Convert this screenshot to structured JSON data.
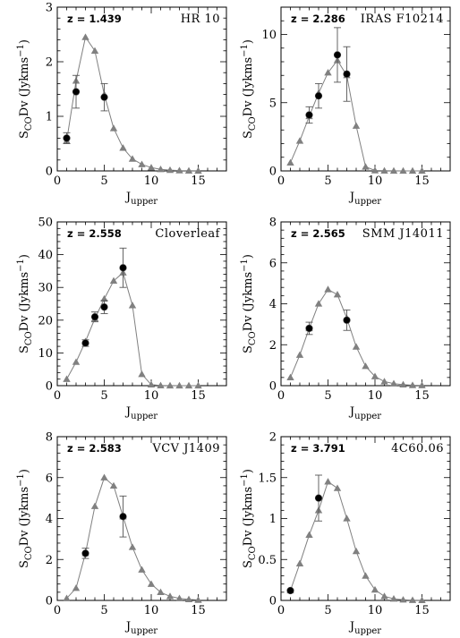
{
  "colors": {
    "model": "#808080",
    "observed": "#000000",
    "frame": "#000000"
  },
  "chart_data": [
    {
      "type": "line",
      "title": "HR 10",
      "annotation": "z = 1.439",
      "xlabel": "J",
      "xlabel_sub": "upper",
      "ylabel": "S",
      "ylabel_sub": "CO",
      "ylabel_rest": "Dv (Jykms",
      "ylabel_sup": "−1",
      "ylabel_end": ")",
      "xlim": [
        0,
        18
      ],
      "ylim": [
        0,
        3
      ],
      "xticks": [
        0,
        5,
        10,
        15
      ],
      "yticks": [
        0,
        1,
        2,
        3
      ],
      "ytick_labels": [
        "0",
        "1",
        "2",
        "3"
      ],
      "series": [
        {
          "kind": "model",
          "x": [
            1,
            2,
            3,
            4,
            5,
            6,
            7,
            8,
            9,
            10,
            11,
            12,
            13,
            14,
            15
          ],
          "y": [
            0.55,
            1.65,
            2.45,
            2.2,
            1.4,
            0.78,
            0.42,
            0.22,
            0.12,
            0.06,
            0.03,
            0.015,
            0.007,
            0.003,
            0.001
          ]
        },
        {
          "kind": "observed",
          "x": [
            1,
            2,
            5
          ],
          "y": [
            0.6,
            1.45,
            1.35
          ],
          "err": [
            0.1,
            0.3,
            0.25
          ]
        }
      ]
    },
    {
      "type": "line",
      "title": "IRAS F10214",
      "annotation": "z = 2.286",
      "xlabel": "J",
      "xlabel_sub": "upper",
      "ylabel": "S",
      "ylabel_sub": "CO",
      "ylabel_rest": "Dv (Jykms",
      "ylabel_sup": "−1",
      "ylabel_end": ")",
      "xlim": [
        0,
        18
      ],
      "ylim": [
        0,
        12
      ],
      "xticks": [
        0,
        5,
        10,
        15
      ],
      "yticks": [
        0,
        5,
        10
      ],
      "ytick_labels": [
        "0",
        "5",
        "10"
      ],
      "series": [
        {
          "kind": "model",
          "x": [
            1,
            2,
            3,
            4,
            5,
            6,
            7,
            8,
            9,
            10,
            11,
            12,
            13,
            14,
            15
          ],
          "y": [
            0.6,
            2.2,
            4.0,
            5.7,
            7.2,
            8.1,
            7.0,
            3.3,
            0.3,
            0.03,
            0.01,
            0.005,
            0.002,
            0.001,
            0.0
          ]
        },
        {
          "kind": "observed",
          "x": [
            3,
            4,
            6,
            7
          ],
          "y": [
            4.1,
            5.5,
            8.5,
            7.1
          ],
          "err": [
            0.6,
            0.9,
            2.0,
            2.0
          ]
        }
      ]
    },
    {
      "type": "line",
      "title": "Cloverleaf",
      "annotation": "z = 2.558",
      "xlabel": "J",
      "xlabel_sub": "upper",
      "ylabel": "S",
      "ylabel_sub": "CO",
      "ylabel_rest": "Dv (Jykms",
      "ylabel_sup": "−1",
      "ylabel_end": ")",
      "xlim": [
        0,
        18
      ],
      "ylim": [
        0,
        50
      ],
      "xticks": [
        0,
        5,
        10,
        15
      ],
      "yticks": [
        0,
        10,
        20,
        30,
        40,
        50
      ],
      "ytick_labels": [
        "0",
        "10",
        "20",
        "30",
        "40",
        "50"
      ],
      "series": [
        {
          "kind": "model",
          "x": [
            1,
            2,
            3,
            4,
            5,
            6,
            7,
            8,
            9,
            10,
            11,
            12,
            13,
            14,
            15
          ],
          "y": [
            2.0,
            7.2,
            13.5,
            20.5,
            26.5,
            32.0,
            34.5,
            24.5,
            3.5,
            0.3,
            0.05,
            0.02,
            0.01,
            0.005,
            0.0
          ]
        },
        {
          "kind": "observed",
          "x": [
            3,
            4,
            5,
            7
          ],
          "y": [
            13.0,
            21.0,
            24.0,
            36.0
          ],
          "err": [
            1.0,
            1.5,
            2.0,
            6.0
          ]
        }
      ]
    },
    {
      "type": "line",
      "title": "SMM J14011",
      "annotation": "z = 2.565",
      "xlabel": "J",
      "xlabel_sub": "upper",
      "ylabel": "S",
      "ylabel_sub": "CO",
      "ylabel_rest": "Dv (Jykms",
      "ylabel_sup": "−1",
      "ylabel_end": ")",
      "xlim": [
        0,
        18
      ],
      "ylim": [
        0,
        8
      ],
      "xticks": [
        0,
        5,
        10,
        15
      ],
      "yticks": [
        0,
        2,
        4,
        6,
        8
      ],
      "ytick_labels": [
        "0",
        "2",
        "4",
        "6",
        "8"
      ],
      "series": [
        {
          "kind": "model",
          "x": [
            1,
            2,
            3,
            4,
            5,
            6,
            7,
            8,
            9,
            10,
            11,
            12,
            13,
            14,
            15
          ],
          "y": [
            0.4,
            1.5,
            2.8,
            4.0,
            4.7,
            4.45,
            3.3,
            1.9,
            0.95,
            0.45,
            0.2,
            0.1,
            0.05,
            0.02,
            0.01
          ]
        },
        {
          "kind": "observed",
          "x": [
            3,
            7
          ],
          "y": [
            2.8,
            3.2
          ],
          "err": [
            0.3,
            0.5
          ]
        }
      ]
    },
    {
      "type": "line",
      "title": "VCV J1409",
      "annotation": "z = 2.583",
      "xlabel": "J",
      "xlabel_sub": "upper",
      "ylabel": "S",
      "ylabel_sub": "CO",
      "ylabel_rest": "Dv (Jykms",
      "ylabel_sup": "−1",
      "ylabel_end": ")",
      "xlim": [
        0,
        18
      ],
      "ylim": [
        0,
        8
      ],
      "xticks": [
        0,
        5,
        10,
        15
      ],
      "yticks": [
        0,
        2,
        4,
        6,
        8
      ],
      "ytick_labels": [
        "0",
        "2",
        "4",
        "6",
        "8"
      ],
      "series": [
        {
          "kind": "model",
          "x": [
            1,
            2,
            3,
            4,
            5,
            6,
            7,
            8,
            9,
            10,
            11,
            12,
            13,
            14,
            15
          ],
          "y": [
            0.1,
            0.6,
            2.3,
            4.6,
            6.0,
            5.6,
            4.1,
            2.6,
            1.5,
            0.8,
            0.4,
            0.2,
            0.1,
            0.05,
            0.02
          ]
        },
        {
          "kind": "observed",
          "x": [
            3,
            7
          ],
          "y": [
            2.3,
            4.1
          ],
          "err": [
            0.25,
            1.0
          ]
        }
      ]
    },
    {
      "type": "line",
      "title": "4C60.06",
      "annotation": "z = 3.791",
      "xlabel": "J",
      "xlabel_sub": "upper",
      "ylabel": "S",
      "ylabel_sub": "CO",
      "ylabel_rest": "Dv (Jykms",
      "ylabel_sup": "−1",
      "ylabel_end": ")",
      "xlim": [
        0,
        18
      ],
      "ylim": [
        0,
        2
      ],
      "xticks": [
        0,
        5,
        10,
        15
      ],
      "yticks": [
        0,
        0.5,
        1,
        1.5,
        2
      ],
      "ytick_labels": [
        "0",
        "0.5",
        "1",
        "1.5",
        "2"
      ],
      "series": [
        {
          "kind": "model",
          "x": [
            1,
            2,
            3,
            4,
            5,
            6,
            7,
            8,
            9,
            10,
            11,
            12,
            13,
            14,
            15
          ],
          "y": [
            0.12,
            0.45,
            0.8,
            1.1,
            1.45,
            1.37,
            1.0,
            0.6,
            0.3,
            0.13,
            0.05,
            0.02,
            0.008,
            0.003,
            0.001
          ]
        },
        {
          "kind": "observed",
          "x": [
            1,
            4
          ],
          "y": [
            0.12,
            1.25
          ],
          "err": [
            0.0,
            0.28
          ]
        }
      ]
    }
  ]
}
